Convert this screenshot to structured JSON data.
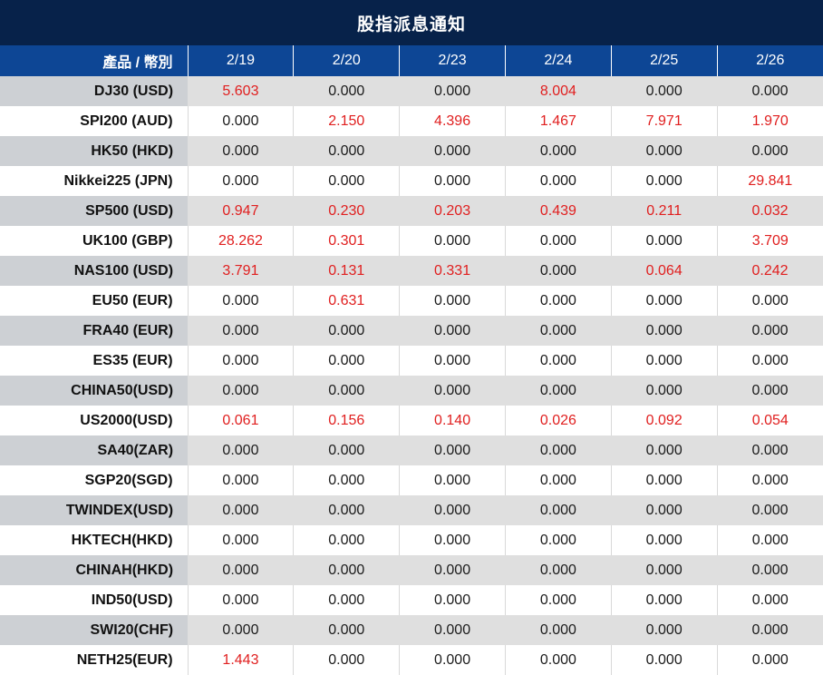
{
  "title": "股指派息通知",
  "colors": {
    "title_bg": "#07224a",
    "header_bg": "#0d4695",
    "row_alt_label_bg": "#cdd0d4",
    "row_alt_bg": "#dfdfdf",
    "highlight_red": "#e01f1f",
    "text_black": "#1b1b1b"
  },
  "table": {
    "product_header": "產品 / 幣別",
    "date_headers": [
      "2/19",
      "2/20",
      "2/23",
      "2/24",
      "2/25",
      "2/26"
    ],
    "rows": [
      {
        "product": "DJ30 (USD)",
        "values": [
          "5.603",
          "0.000",
          "0.000",
          "8.004",
          "0.000",
          "0.000"
        ],
        "red": [
          true,
          false,
          false,
          true,
          false,
          false
        ]
      },
      {
        "product": "SPI200 (AUD)",
        "values": [
          "0.000",
          "2.150",
          "4.396",
          "1.467",
          "7.971",
          "1.970"
        ],
        "red": [
          false,
          true,
          true,
          true,
          true,
          true
        ]
      },
      {
        "product": "HK50 (HKD)",
        "values": [
          "0.000",
          "0.000",
          "0.000",
          "0.000",
          "0.000",
          "0.000"
        ],
        "red": [
          false,
          false,
          false,
          false,
          false,
          false
        ]
      },
      {
        "product": "Nikkei225 (JPN)",
        "values": [
          "0.000",
          "0.000",
          "0.000",
          "0.000",
          "0.000",
          "29.841"
        ],
        "red": [
          false,
          false,
          false,
          false,
          false,
          true
        ]
      },
      {
        "product": "SP500 (USD)",
        "values": [
          "0.947",
          "0.230",
          "0.203",
          "0.439",
          "0.211",
          "0.032"
        ],
        "red": [
          true,
          true,
          true,
          true,
          true,
          true
        ]
      },
      {
        "product": "UK100 (GBP)",
        "values": [
          "28.262",
          "0.301",
          "0.000",
          "0.000",
          "0.000",
          "3.709"
        ],
        "red": [
          true,
          true,
          false,
          false,
          false,
          true
        ]
      },
      {
        "product": "NAS100 (USD)",
        "values": [
          "3.791",
          "0.131",
          "0.331",
          "0.000",
          "0.064",
          "0.242"
        ],
        "red": [
          true,
          true,
          true,
          false,
          true,
          true
        ]
      },
      {
        "product": "EU50 (EUR)",
        "values": [
          "0.000",
          "0.631",
          "0.000",
          "0.000",
          "0.000",
          "0.000"
        ],
        "red": [
          false,
          true,
          false,
          false,
          false,
          false
        ]
      },
      {
        "product": "FRA40 (EUR)",
        "values": [
          "0.000",
          "0.000",
          "0.000",
          "0.000",
          "0.000",
          "0.000"
        ],
        "red": [
          false,
          false,
          false,
          false,
          false,
          false
        ]
      },
      {
        "product": "ES35 (EUR)",
        "values": [
          "0.000",
          "0.000",
          "0.000",
          "0.000",
          "0.000",
          "0.000"
        ],
        "red": [
          false,
          false,
          false,
          false,
          false,
          false
        ]
      },
      {
        "product": "CHINA50(USD)",
        "values": [
          "0.000",
          "0.000",
          "0.000",
          "0.000",
          "0.000",
          "0.000"
        ],
        "red": [
          false,
          false,
          false,
          false,
          false,
          false
        ]
      },
      {
        "product": "US2000(USD)",
        "values": [
          "0.061",
          "0.156",
          "0.140",
          "0.026",
          "0.092",
          "0.054"
        ],
        "red": [
          true,
          true,
          true,
          true,
          true,
          true
        ]
      },
      {
        "product": "SA40(ZAR)",
        "values": [
          "0.000",
          "0.000",
          "0.000",
          "0.000",
          "0.000",
          "0.000"
        ],
        "red": [
          false,
          false,
          false,
          false,
          false,
          false
        ]
      },
      {
        "product": "SGP20(SGD)",
        "values": [
          "0.000",
          "0.000",
          "0.000",
          "0.000",
          "0.000",
          "0.000"
        ],
        "red": [
          false,
          false,
          false,
          false,
          false,
          false
        ]
      },
      {
        "product": "TWINDEX(USD)",
        "values": [
          "0.000",
          "0.000",
          "0.000",
          "0.000",
          "0.000",
          "0.000"
        ],
        "red": [
          false,
          false,
          false,
          false,
          false,
          false
        ]
      },
      {
        "product": "HKTECH(HKD)",
        "values": [
          "0.000",
          "0.000",
          "0.000",
          "0.000",
          "0.000",
          "0.000"
        ],
        "red": [
          false,
          false,
          false,
          false,
          false,
          false
        ]
      },
      {
        "product": "CHINAH(HKD)",
        "values": [
          "0.000",
          "0.000",
          "0.000",
          "0.000",
          "0.000",
          "0.000"
        ],
        "red": [
          false,
          false,
          false,
          false,
          false,
          false
        ]
      },
      {
        "product": "IND50(USD)",
        "values": [
          "0.000",
          "0.000",
          "0.000",
          "0.000",
          "0.000",
          "0.000"
        ],
        "red": [
          false,
          false,
          false,
          false,
          false,
          false
        ]
      },
      {
        "product": "SWI20(CHF)",
        "values": [
          "0.000",
          "0.000",
          "0.000",
          "0.000",
          "0.000",
          "0.000"
        ],
        "red": [
          false,
          false,
          false,
          false,
          false,
          false
        ]
      },
      {
        "product": "NETH25(EUR)",
        "values": [
          "1.443",
          "0.000",
          "0.000",
          "0.000",
          "0.000",
          "0.000"
        ],
        "red": [
          true,
          false,
          false,
          false,
          false,
          false
        ]
      }
    ]
  }
}
